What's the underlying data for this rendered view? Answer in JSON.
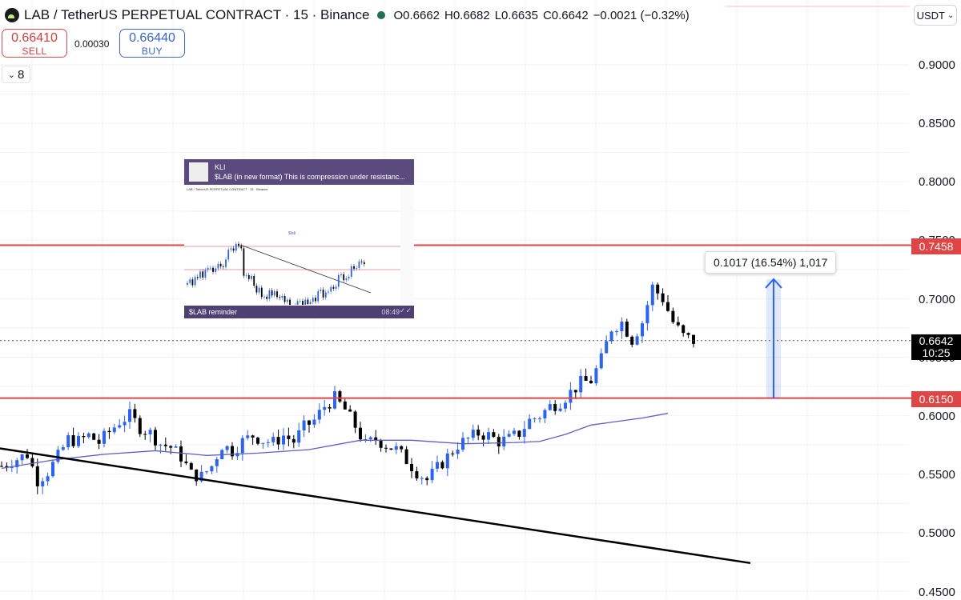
{
  "header": {
    "title": "LAB / TetherUS PERPETUAL CONTRACT · 15 · Binance",
    "open": "O0.6662",
    "high": "H0.6682",
    "low": "L0.6635",
    "close": "C0.6642",
    "change": "−0.0021 (−0.32%)"
  },
  "trade": {
    "sell_price": "0.66410",
    "sell_label": "SELL",
    "spread": "0.00030",
    "buy_price": "0.66440",
    "buy_label": "BUY"
  },
  "indicators": {
    "count": "8"
  },
  "currency": "USDT",
  "price_axis": {
    "labels": [
      "0.9000",
      "0.8500",
      "0.8000",
      "0.7500",
      "0.7000",
      "0.6500",
      "0.6000",
      "0.5500",
      "0.5000",
      "0.4500"
    ],
    "resistance_tag": "0.7458",
    "support_tag": "0.6150",
    "current_price": "0.6642",
    "countdown": "10:25"
  },
  "measure": {
    "label": "0.1017 (16.54%) 1,017"
  },
  "inset": {
    "author": "KLI",
    "message": "$LAB (in new format)  This is compression under resistanc...",
    "caption": "$LAB reminder",
    "time": "08:49",
    "chart_tag": "$lab"
  },
  "colors": {
    "up": "#2962ff",
    "down": "#000000",
    "ma": "#5b5fc7",
    "level": "#e04545",
    "trend": "#000000"
  },
  "chart_data": {
    "type": "candlestick",
    "symbol": "LAB/USDT",
    "interval": "15",
    "ylim": [
      0.45,
      0.92
    ],
    "levels": {
      "resistance": 0.7458,
      "support": 0.615,
      "current": 0.6642
    },
    "measure": {
      "from": 0.615,
      "to": 0.7167,
      "delta": 0.1017,
      "percent": "16.54%",
      "ticks": 1017
    },
    "trendline": {
      "start": 0.572,
      "end": 0.474
    },
    "close_path": [
      [
        0,
        0.557
      ],
      [
        3,
        0.563
      ],
      [
        5,
        0.567
      ],
      [
        7,
        0.545
      ],
      [
        9,
        0.552
      ],
      [
        11,
        0.565
      ],
      [
        13,
        0.58
      ],
      [
        15,
        0.578
      ],
      [
        17,
        0.583
      ],
      [
        19,
        0.577
      ],
      [
        21,
        0.586
      ],
      [
        23,
        0.595
      ],
      [
        25,
        0.6
      ],
      [
        27,
        0.59
      ],
      [
        29,
        0.585
      ],
      [
        31,
        0.576
      ],
      [
        33,
        0.573
      ],
      [
        35,
        0.565
      ],
      [
        37,
        0.55
      ],
      [
        39,
        0.548
      ],
      [
        41,
        0.557
      ],
      [
        43,
        0.575
      ],
      [
        45,
        0.57
      ],
      [
        47,
        0.578
      ],
      [
        49,
        0.583
      ],
      [
        51,
        0.579
      ],
      [
        53,
        0.577
      ],
      [
        55,
        0.583
      ],
      [
        57,
        0.578
      ],
      [
        59,
        0.59
      ],
      [
        61,
        0.596
      ],
      [
        63,
        0.608
      ],
      [
        65,
        0.615
      ],
      [
        67,
        0.605
      ],
      [
        69,
        0.591
      ],
      [
        71,
        0.575
      ],
      [
        73,
        0.58
      ],
      [
        75,
        0.575
      ],
      [
        77,
        0.571
      ],
      [
        79,
        0.562
      ],
      [
        81,
        0.552
      ],
      [
        83,
        0.545
      ],
      [
        85,
        0.555
      ],
      [
        87,
        0.565
      ],
      [
        89,
        0.575
      ],
      [
        91,
        0.58
      ],
      [
        93,
        0.585
      ],
      [
        95,
        0.583
      ],
      [
        97,
        0.578
      ],
      [
        99,
        0.58
      ],
      [
        101,
        0.585
      ],
      [
        103,
        0.596
      ],
      [
        105,
        0.6
      ],
      [
        107,
        0.608
      ],
      [
        109,
        0.612
      ],
      [
        111,
        0.62
      ],
      [
        113,
        0.628
      ],
      [
        115,
        0.63
      ],
      [
        117,
        0.648
      ],
      [
        119,
        0.675
      ],
      [
        121,
        0.68
      ],
      [
        123,
        0.665
      ],
      [
        125,
        0.68
      ],
      [
        127,
        0.71
      ],
      [
        129,
        0.7
      ],
      [
        131,
        0.68
      ],
      [
        133,
        0.668
      ],
      [
        135,
        0.664
      ]
    ],
    "ma_path": [
      [
        0,
        0.555
      ],
      [
        10,
        0.562
      ],
      [
        20,
        0.567
      ],
      [
        30,
        0.57
      ],
      [
        40,
        0.566
      ],
      [
        50,
        0.568
      ],
      [
        60,
        0.571
      ],
      [
        70,
        0.579
      ],
      [
        80,
        0.579
      ],
      [
        90,
        0.576
      ],
      [
        100,
        0.577
      ],
      [
        105,
        0.578
      ],
      [
        110,
        0.584
      ],
      [
        115,
        0.592
      ],
      [
        120,
        0.595
      ],
      [
        125,
        0.598
      ],
      [
        130,
        0.602
      ]
    ]
  }
}
